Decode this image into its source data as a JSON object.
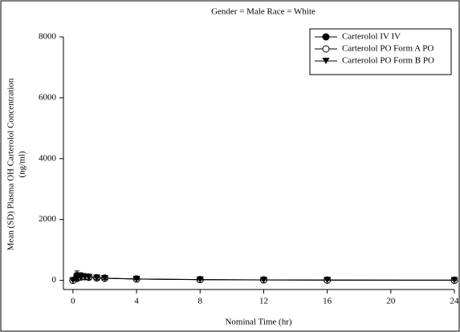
{
  "chart_data": {
    "type": "line",
    "title": "Gender = Male  Race = White",
    "x_label": "Nominal Time (hr)",
    "y_label": [
      "Mean (SD) Plasma OH Carterolol Concentration",
      "(ng/ml)"
    ],
    "x": [
      0,
      0.25,
      0.5,
      0.75,
      1,
      1.5,
      2,
      4,
      8,
      12,
      16,
      24
    ],
    "series": [
      {
        "name": "Carterolol IV  IV",
        "color": "#000000",
        "marker": "filled-circle",
        "values": [
          0,
          160,
          140,
          120,
          100,
          80,
          70,
          45,
          25,
          15,
          10,
          5
        ],
        "errors": [
          0,
          150,
          110,
          90,
          70,
          50,
          40,
          25,
          15,
          10,
          6,
          4
        ]
      },
      {
        "name": "Carterolol PO Form A  PO",
        "color": "#000000",
        "marker": "open-circle",
        "values": [
          0,
          60,
          110,
          120,
          110,
          90,
          75,
          45,
          25,
          15,
          10,
          5
        ],
        "errors": [
          0,
          60,
          90,
          80,
          70,
          55,
          45,
          25,
          15,
          10,
          6,
          4
        ]
      },
      {
        "name": "Carterolol PO Form B  PO",
        "color": "#000000",
        "marker": "filled-triangle-down",
        "values": [
          0,
          50,
          100,
          115,
          105,
          85,
          70,
          42,
          24,
          14,
          9,
          5
        ],
        "errors": [
          0,
          50,
          80,
          75,
          65,
          50,
          40,
          22,
          14,
          9,
          5,
          3
        ]
      }
    ],
    "xlim": [
      -0.6,
      24
    ],
    "xticks": [
      0,
      4,
      8,
      12,
      16,
      20,
      24
    ],
    "ylim": [
      -300,
      8000
    ],
    "yticks": [
      0,
      2000,
      4000,
      6000,
      8000
    ],
    "legend": "top-right",
    "grid": false
  }
}
